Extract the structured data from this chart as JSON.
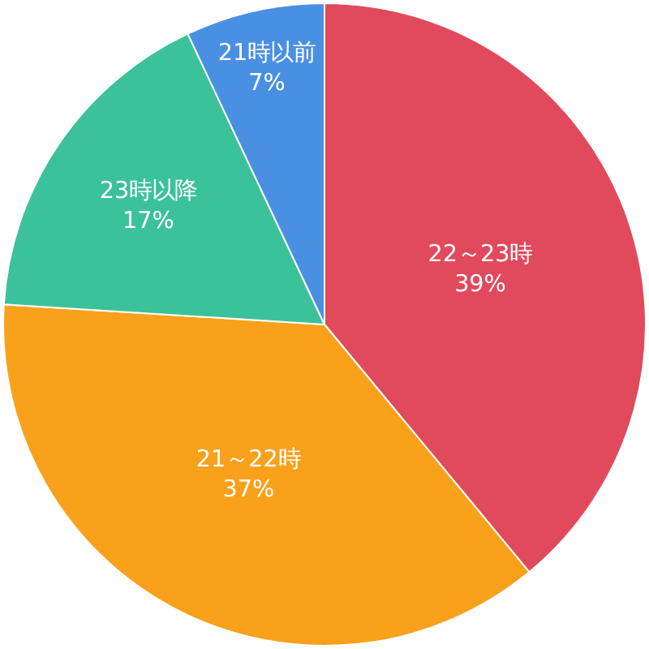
{
  "chart_data": {
    "type": "pie",
    "categories": [
      "22～23時",
      "21～22時",
      "23時以降",
      "21時以前"
    ],
    "values": [
      39,
      37,
      17,
      7
    ],
    "value_labels": [
      "39%",
      "37%",
      "17%",
      "7%"
    ],
    "colors": [
      "#e04a5c",
      "#f9a11b",
      "#3cc29a",
      "#4a90e2"
    ]
  }
}
